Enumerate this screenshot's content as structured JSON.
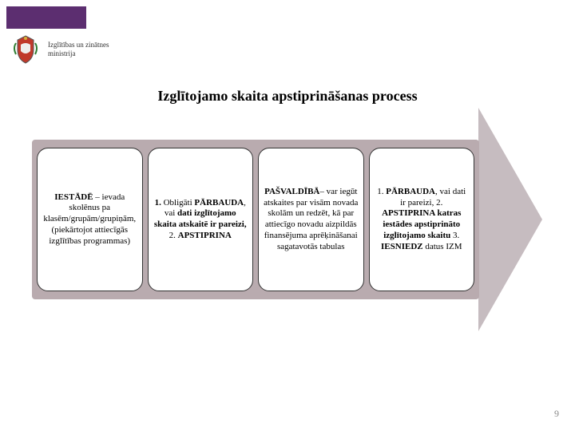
{
  "brand": {
    "bar_color": "#5c2e70",
    "ministry_line1": "Izglītības un zinātnes",
    "ministry_line2": "ministrija"
  },
  "title": {
    "text": "Izglītojamo skaita apstiprināšanas process",
    "fontsize": 18
  },
  "arrow": {
    "fill": "#b9abaf",
    "head_fill": "#c6bcc0"
  },
  "cards": [
    {
      "segments": [
        {
          "text": "IESTĀDĒ",
          "bold": true
        },
        {
          "text": " – ievada skolēnus pa klasēm/grupām/grupiņām, (piekārtojot attiecīgās izglītības programmas)",
          "bold": false
        }
      ]
    },
    {
      "segments": [
        {
          "text": "1. ",
          "bold": true
        },
        {
          "text": "Obligāti ",
          "bold": false
        },
        {
          "text": "PĀRBAUDA",
          "bold": true
        },
        {
          "text": ", vai ",
          "bold": false
        },
        {
          "text": "dati izglītojamo skaita atskaitē ir pareizi,",
          "bold": true
        },
        {
          "text": " 2. ",
          "bold": false
        },
        {
          "text": "APSTIPRINA",
          "bold": true
        }
      ]
    },
    {
      "segments": [
        {
          "text": "PAŠVALDĪBĀ",
          "bold": true
        },
        {
          "text": "– var iegūt atskaites par visām novada skolām un redzēt, kā par attiecīgo novadu aizpildās finansējuma aprēķināšanai sagatavotās tabulas",
          "bold": false
        }
      ]
    },
    {
      "segments": [
        {
          "text": "1. ",
          "bold": false
        },
        {
          "text": "PĀRBAUDA",
          "bold": true
        },
        {
          "text": ", vai dati ir pareizi,  2. ",
          "bold": false
        },
        {
          "text": "APSTIPRINA katras iestādes apstiprināto izglītojamo skaitu",
          "bold": true
        },
        {
          "text": "  3. ",
          "bold": false
        },
        {
          "text": "IESNIEDZ",
          "bold": true
        },
        {
          "text": " datus IZM",
          "bold": false
        }
      ]
    }
  ],
  "slide_number": "9"
}
